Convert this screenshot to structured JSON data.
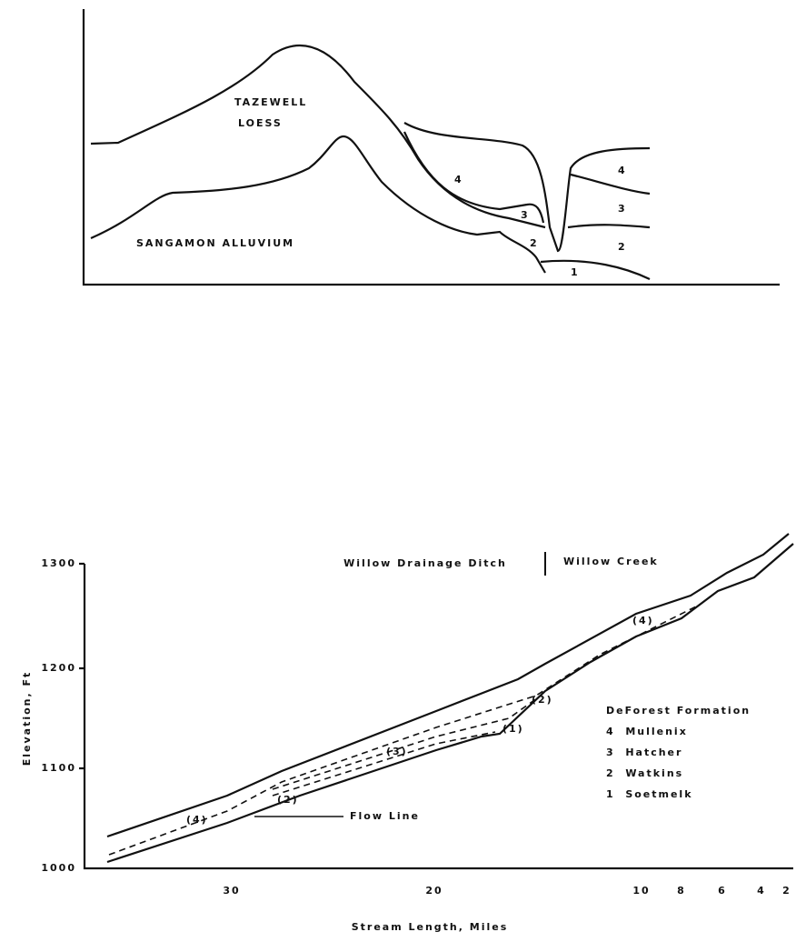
{
  "top_diagram": {
    "labels": [
      "TAZEWELL",
      "LOESS",
      "SANGAMON ALLUVIUM",
      "4",
      "3",
      "2",
      "1",
      "4",
      "3",
      "2"
    ]
  },
  "bottom_diagram": {
    "headers": [
      "Willow Drainage Ditch",
      "Willow Creek"
    ],
    "y_axis_label": "Elevation, Ft",
    "x_axis_label": "Stream Length, Miles",
    "yticks": [
      "1300",
      "1200",
      "1100",
      "1000"
    ],
    "xticks": [
      "30",
      "20",
      "10",
      "8",
      "6",
      "4",
      "2"
    ],
    "legend": {
      "title": "DeForest Formation",
      "items": [
        "4  Mullenix",
        "3  Hatcher",
        "2  Watkins",
        "1  Soetmelk"
      ]
    },
    "flow_line": "Flow Line",
    "unit_labels": [
      "(4)",
      "(2)",
      "(3)",
      "(1)",
      "(2)",
      "(4)"
    ]
  }
}
